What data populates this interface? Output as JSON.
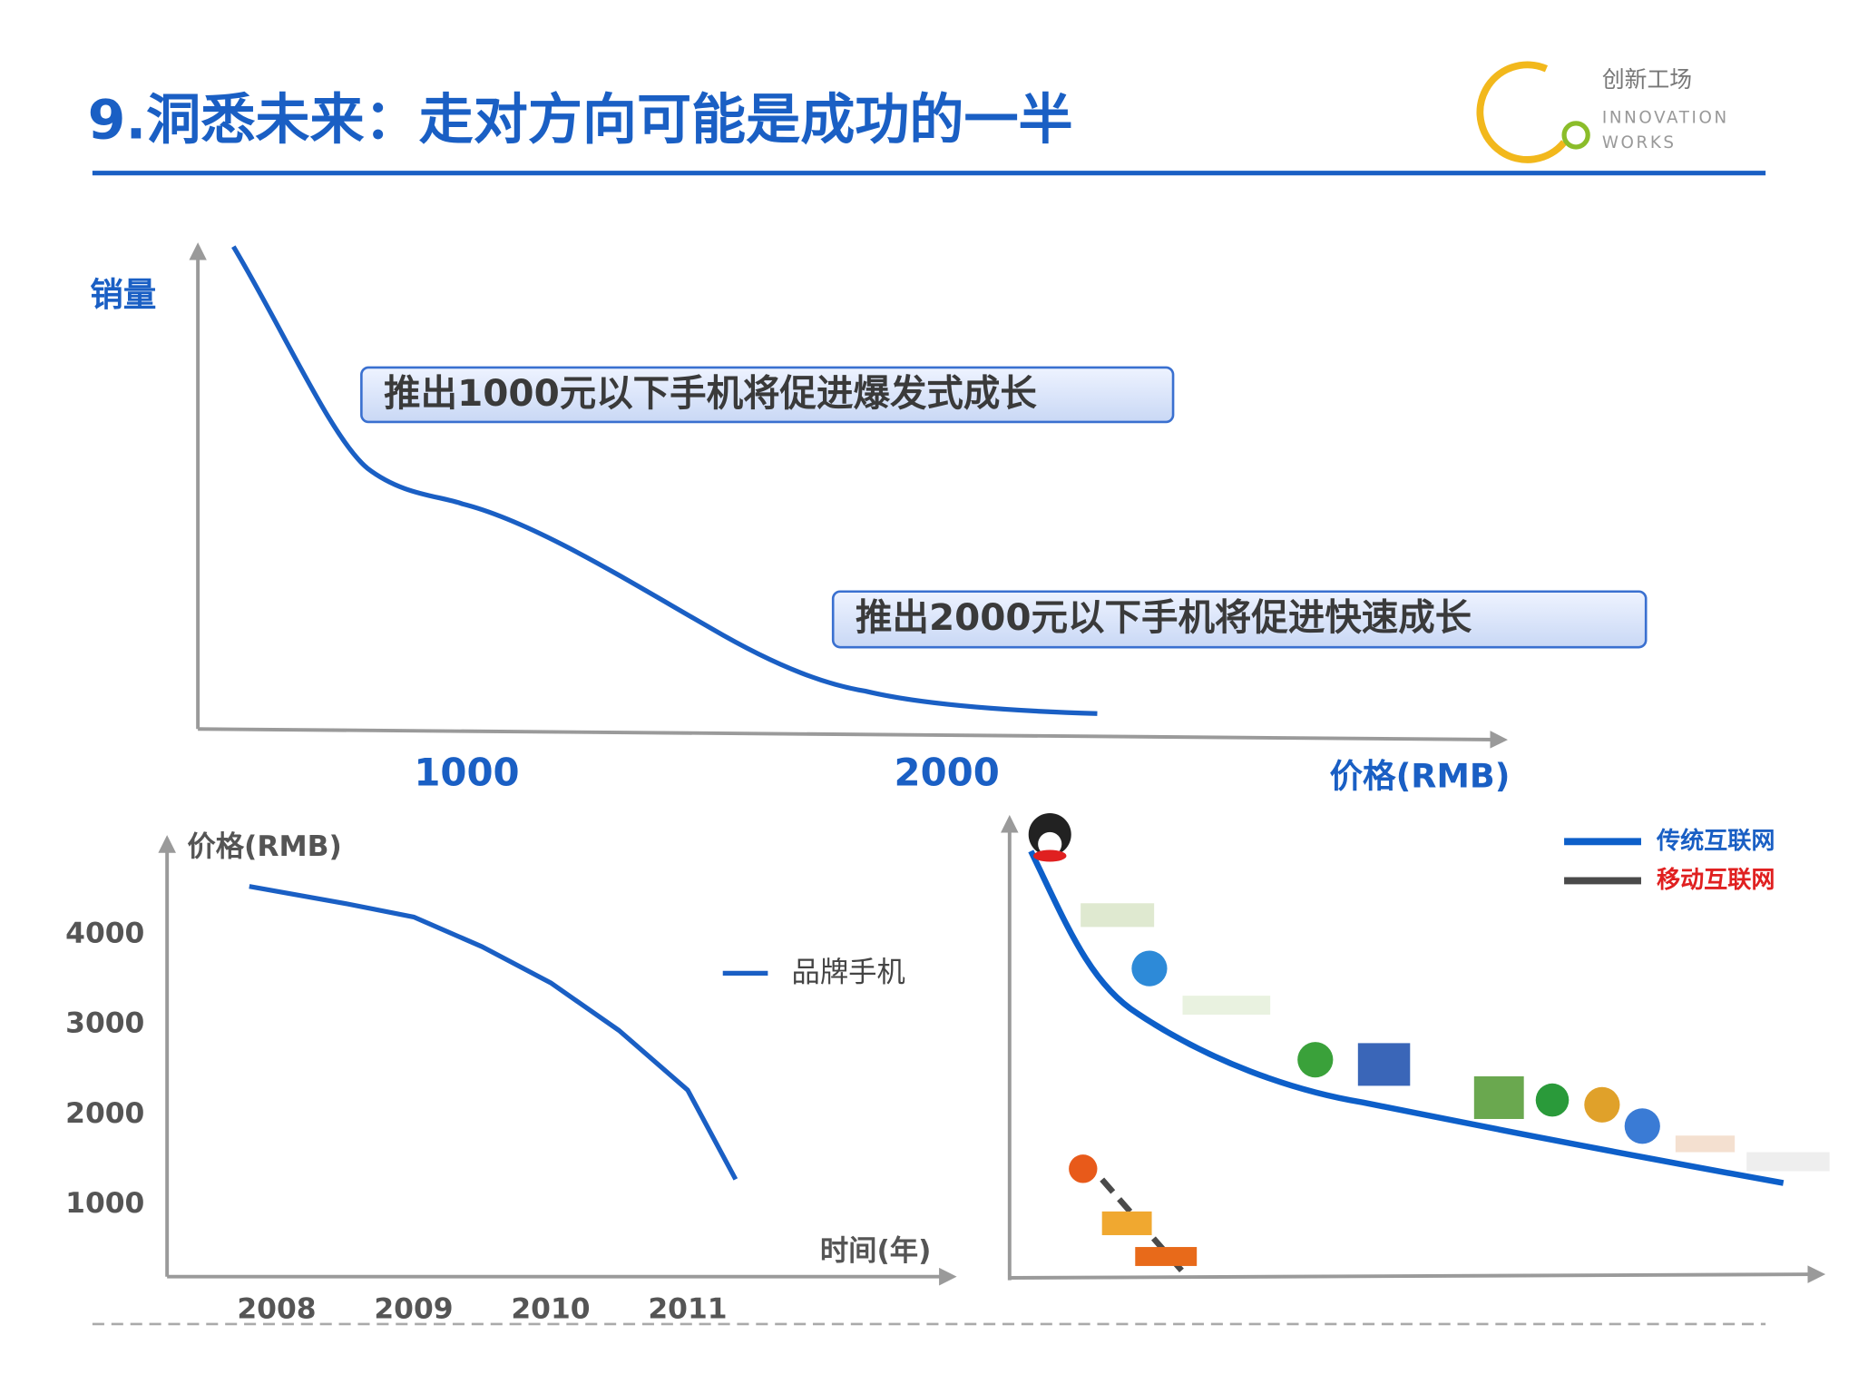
{
  "title": "9.洞悉未来：走对方向可能是成功的一半",
  "logo": {
    "name": "创新工场",
    "line1": "INNOVATION",
    "line2": "WORKS"
  },
  "chart_data": [
    {
      "type": "curve",
      "ylabel": "销量",
      "xlabel": "价格(RMB)",
      "xlim": [
        440,
        3150
      ],
      "xticks": [
        1000,
        2000
      ],
      "annotations": [
        "推出1000元以下手机将促进爆发式成长",
        "推出2000元以下手机将促进快速成长"
      ]
    },
    {
      "type": "line",
      "ylabel": "价格(RMB)",
      "xlabel": "时间(年)",
      "x": [
        2007.8,
        2008.5,
        2009,
        2009.5,
        2010,
        2010.5,
        2011,
        2011.35
      ],
      "xlim": [
        2007.2,
        2012.9
      ],
      "xticks": [
        2008,
        2009,
        2010,
        2011
      ],
      "ylim": [
        200,
        5000
      ],
      "yticks": [
        1000,
        2000,
        3000,
        4000
      ],
      "series": [
        {
          "name": "品牌手机",
          "color": "#1a5fc4",
          "values": [
            4530,
            4340,
            4190,
            3860,
            3460,
            2930,
            2270,
            1280
          ]
        }
      ]
    },
    {
      "type": "trend",
      "series": [
        {
          "name": "传统互联网",
          "color": "#0d5fc9"
        },
        {
          "name": "移动互联网",
          "color": "#4a4a4a"
        }
      ]
    }
  ]
}
